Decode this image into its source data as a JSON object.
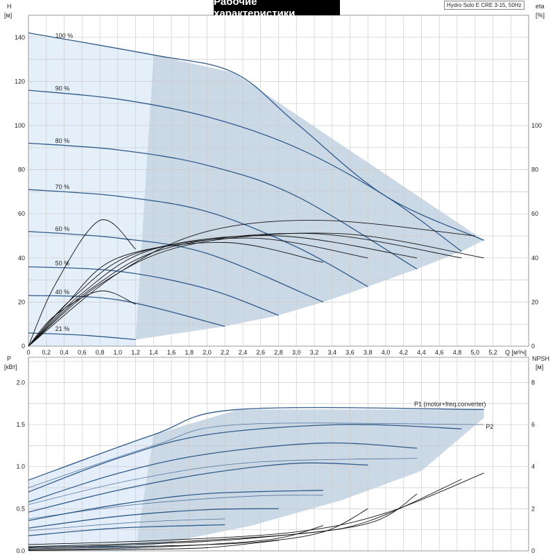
{
  "title": "Рабочие характеристики",
  "model": "Hydro Solo E CRE 3-15, 50Hz",
  "colors": {
    "curve": "#2f5a8a",
    "fill": "#cbd9e7",
    "fill_light": "#e3eefa",
    "grid": "#cccccc",
    "eta": "#111111"
  },
  "chart_data": [
    {
      "id": "head",
      "type": "line",
      "xlabel": "Q [м³/ч]",
      "ylabel": "H\n[м]",
      "y2label": "eta\n[%]",
      "xlim": [
        0,
        5.6
      ],
      "ylim": [
        0,
        150
      ],
      "y2lim": [
        0,
        150
      ],
      "xticks": [
        "0",
        "0,2",
        "0,4",
        "0,6",
        "0,8",
        "1,0",
        "1,2",
        "1,4",
        "1,6",
        "1,8",
        "2,0",
        "2,2",
        "2,4",
        "2,6",
        "2,8",
        "3,0",
        "3,2",
        "3,4",
        "3,6",
        "3,8",
        "4,0",
        "4,2",
        "4,4",
        "4,6",
        "4,8",
        "5,0",
        "5,2"
      ],
      "yticks": [
        0,
        20,
        40,
        60,
        80,
        100,
        120,
        140
      ],
      "y2ticks": [
        0,
        20,
        40,
        60,
        80,
        100
      ],
      "envelope": {
        "max_curve": [
          [
            0,
            142
          ],
          [
            1.4,
            132
          ],
          [
            2.3,
            124
          ],
          [
            5.1,
            48
          ]
        ],
        "min_curve": [
          [
            1.2,
            3
          ],
          [
            2.2,
            9
          ],
          [
            2.8,
            14
          ],
          [
            3.3,
            20
          ],
          [
            3.8,
            27
          ],
          [
            4.35,
            35
          ],
          [
            4.85,
            43
          ],
          [
            5.1,
            48
          ]
        ]
      },
      "speed_curves": [
        {
          "label": "100 %",
          "points": [
            [
              0,
              142
            ],
            [
              1.4,
              132
            ],
            [
              2.3,
              124
            ],
            [
              3.0,
              101
            ],
            [
              4.0,
              68
            ],
            [
              5.1,
              48
            ]
          ]
        },
        {
          "label": "90 %",
          "points": [
            [
              0,
              116
            ],
            [
              1.0,
              112
            ],
            [
              2.0,
              104
            ],
            [
              3.0,
              90
            ],
            [
              4.0,
              68
            ],
            [
              4.85,
              43
            ]
          ]
        },
        {
          "label": "80 %",
          "points": [
            [
              0,
              92
            ],
            [
              1.0,
              89
            ],
            [
              2.0,
              82
            ],
            [
              3.0,
              68
            ],
            [
              4.35,
              35
            ]
          ]
        },
        {
          "label": "70 %",
          "points": [
            [
              0,
              71
            ],
            [
              1.0,
              68
            ],
            [
              2.0,
              61
            ],
            [
              3.0,
              45
            ],
            [
              3.8,
              27
            ]
          ]
        },
        {
          "label": "60 %",
          "points": [
            [
              0,
              52
            ],
            [
              1.0,
              49
            ],
            [
              2.0,
              42
            ],
            [
              3.3,
              20
            ]
          ]
        },
        {
          "label": "50 %",
          "points": [
            [
              0,
              36
            ],
            [
              1.0,
              34
            ],
            [
              2.0,
              26
            ],
            [
              2.8,
              14
            ]
          ]
        },
        {
          "label": "40 %",
          "points": [
            [
              0,
              23
            ],
            [
              1.0,
              21
            ],
            [
              2.2,
              9
            ]
          ]
        },
        {
          "label": "21 %",
          "points": [
            [
              0,
              6
            ],
            [
              0.6,
              5
            ],
            [
              1.2,
              3
            ]
          ]
        }
      ],
      "eta_curves": [
        {
          "points": [
            [
              0,
              0
            ],
            [
              0.3,
              28
            ],
            [
              0.8,
              57
            ],
            [
              1.2,
              44
            ]
          ]
        },
        {
          "points": [
            [
              0,
              0
            ],
            [
              0.3,
              14
            ],
            [
              0.8,
              25
            ],
            [
              1.2,
              19
            ]
          ]
        },
        {
          "points": [
            [
              0,
              0
            ],
            [
              0.4,
              18
            ],
            [
              1.0,
              40
            ],
            [
              2.2,
              47
            ],
            [
              3.3,
              38
            ]
          ]
        },
        {
          "points": [
            [
              0,
              0
            ],
            [
              0.5,
              22
            ],
            [
              1.2,
              42
            ],
            [
              2.5,
              49
            ],
            [
              3.8,
              40
            ]
          ]
        },
        {
          "points": [
            [
              0,
              0
            ],
            [
              0.6,
              24
            ],
            [
              1.4,
              44
            ],
            [
              2.8,
              50
            ],
            [
              4.35,
              40
            ]
          ]
        },
        {
          "points": [
            [
              0,
              0
            ],
            [
              0.7,
              26
            ],
            [
              1.6,
              45
            ],
            [
              3.2,
              51
            ],
            [
              4.85,
              40
            ]
          ]
        },
        {
          "points": [
            [
              0,
              0
            ],
            [
              0.8,
              28
            ],
            [
              1.8,
              46
            ],
            [
              3.5,
              51
            ],
            [
              5.1,
              40
            ]
          ]
        },
        {
          "points": [
            [
              0,
              0
            ],
            [
              1.0,
              33
            ],
            [
              2.0,
              52
            ],
            [
              3.3,
              57
            ],
            [
              5.0,
              50
            ]
          ]
        }
      ]
    },
    {
      "id": "power",
      "type": "line",
      "xlabel": "",
      "ylabel": "P\n[кВт]",
      "y2label": "NPSH\n[м]",
      "xlim": [
        0,
        5.6
      ],
      "ylim": [
        0,
        2.3
      ],
      "y2lim": [
        0,
        9.2
      ],
      "yticks": [
        "0.0",
        "0.5",
        "1.0",
        "1.5",
        "2.0"
      ],
      "y2ticks": [
        0,
        2,
        4,
        6,
        8
      ],
      "series_labels": [
        "P1 (motor+freq.converter)",
        "P2"
      ],
      "envelope": {
        "max_curve": [
          [
            0,
            0.84
          ],
          [
            1.4,
            1.38
          ],
          [
            2.35,
            1.68
          ],
          [
            5.1,
            1.68
          ]
        ],
        "min_curve": [
          [
            1.2,
            0.02
          ],
          [
            2.5,
            0.3
          ],
          [
            3.5,
            0.6
          ],
          [
            4.4,
            0.95
          ],
          [
            5.1,
            1.58
          ]
        ]
      },
      "p1_curves": [
        {
          "points": [
            [
              0,
              0.84
            ],
            [
              1.4,
              1.38
            ],
            [
              2.35,
              1.68
            ],
            [
              5.1,
              1.68
            ]
          ]
        },
        {
          "points": [
            [
              0,
              0.7
            ],
            [
              1.0,
              1.1
            ],
            [
              2.0,
              1.38
            ],
            [
              3.5,
              1.5
            ],
            [
              4.85,
              1.45
            ]
          ]
        },
        {
          "points": [
            [
              0,
              0.58
            ],
            [
              1.0,
              0.92
            ],
            [
              2.0,
              1.15
            ],
            [
              3.3,
              1.28
            ],
            [
              4.35,
              1.22
            ]
          ]
        },
        {
          "points": [
            [
              0,
              0.46
            ],
            [
              1.0,
              0.72
            ],
            [
              2.0,
              0.92
            ],
            [
              3.0,
              1.04
            ],
            [
              3.8,
              1.02
            ]
          ]
        },
        {
          "points": [
            [
              0,
              0.36
            ],
            [
              1.0,
              0.55
            ],
            [
              2.0,
              0.68
            ],
            [
              3.3,
              0.72
            ]
          ]
        },
        {
          "points": [
            [
              0,
              0.27
            ],
            [
              1.0,
              0.41
            ],
            [
              2.0,
              0.49
            ],
            [
              2.8,
              0.5
            ]
          ]
        },
        {
          "points": [
            [
              0,
              0.18
            ],
            [
              1.0,
              0.27
            ],
            [
              2.2,
              0.31
            ]
          ]
        },
        {
          "points": [
            [
              0,
              0.04
            ],
            [
              0.6,
              0.05
            ],
            [
              1.2,
              0.05
            ]
          ]
        }
      ],
      "p2_curves": [
        {
          "points": [
            [
              0,
              0.75
            ],
            [
              1.4,
              1.25
            ],
            [
              2.35,
              1.5
            ],
            [
              5.1,
              1.5
            ]
          ]
        },
        {
          "points": [
            [
              0,
              0.55
            ],
            [
              1.2,
              0.85
            ],
            [
              2.5,
              1.05
            ],
            [
              4.35,
              1.1
            ]
          ]
        },
        {
          "points": [
            [
              0,
              0.38
            ],
            [
              1.2,
              0.55
            ],
            [
              2.5,
              0.65
            ],
            [
              3.3,
              0.66
            ]
          ]
        },
        {
          "points": [
            [
              0,
              0.24
            ],
            [
              1.2,
              0.34
            ],
            [
              2.2,
              0.38
            ]
          ]
        }
      ],
      "npsh_curves": [
        {
          "points": [
            [
              0,
              0.3
            ],
            [
              1.5,
              0.5
            ],
            [
              3.0,
              0.9
            ],
            [
              4.0,
              1.8
            ],
            [
              5.1,
              3.7
            ]
          ]
        },
        {
          "points": [
            [
              0,
              0.2
            ],
            [
              1.5,
              0.4
            ],
            [
              3.0,
              0.8
            ],
            [
              3.8,
              1.4
            ],
            [
              4.85,
              3.4
            ]
          ]
        },
        {
          "points": [
            [
              0,
              0.15
            ],
            [
              1.2,
              0.3
            ],
            [
              2.5,
              0.6
            ],
            [
              3.8,
              1.3
            ],
            [
              4.35,
              2.7
            ]
          ]
        },
        {
          "points": [
            [
              0,
              0.1
            ],
            [
              1.2,
              0.2
            ],
            [
              2.5,
              0.4
            ],
            [
              3.3,
              0.9
            ],
            [
              3.8,
              2.0
            ]
          ]
        },
        {
          "points": [
            [
              0,
              0.05
            ],
            [
              1.0,
              0.12
            ],
            [
              2.0,
              0.3
            ],
            [
              2.8,
              0.6
            ],
            [
              3.3,
              1.2
            ]
          ]
        },
        {
          "points": [
            [
              0,
              0.02
            ],
            [
              1.0,
              0.06
            ],
            [
              2.0,
              0.15
            ],
            [
              2.8,
              0.5
            ]
          ]
        }
      ]
    }
  ]
}
